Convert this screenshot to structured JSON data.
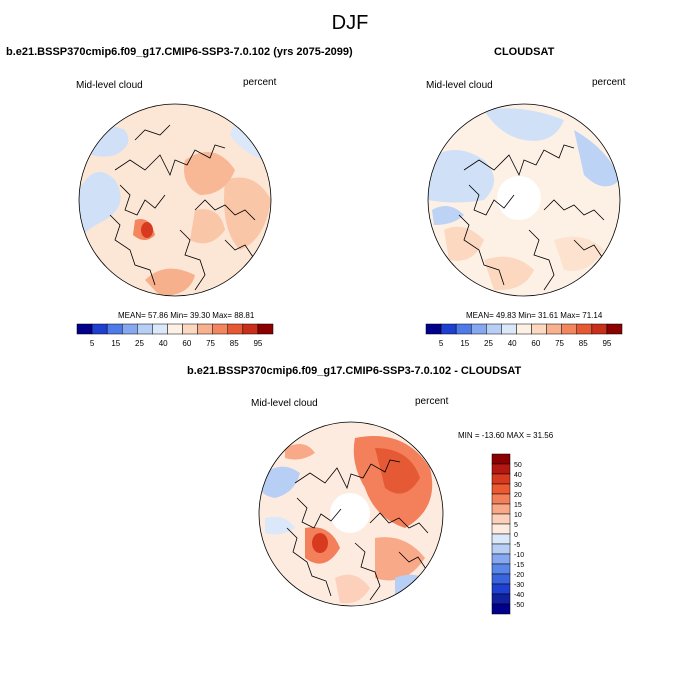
{
  "title": "DJF",
  "panels": [
    {
      "title": "b.e21.BSSP370cmip6.f09_g17.CMIP6-SSP3-7.0.102 (yrs 2075-2099)",
      "left_label": "Mid-level cloud",
      "right_label": "percent",
      "stats": "MEAN=  57.86  Min=  39.30  Max=  88.81"
    },
    {
      "title": "CLOUDSAT",
      "left_label": "Mid-level cloud",
      "right_label": "percent",
      "stats": "MEAN=  49.83  Min=  31.61  Max=  71.14"
    },
    {
      "title": "b.e21.BSSP370cmip6.f09_g17.CMIP6-SSP3-7.0.102 - CLOUDSAT",
      "left_label": "Mid-level cloud",
      "right_label": "percent",
      "stats": "MIN = -13.60 MAX =  31.56"
    }
  ],
  "abs_colorbar": {
    "ticks": [
      "5",
      "15",
      "25",
      "40",
      "60",
      "75",
      "85",
      "95"
    ],
    "colors": [
      "#00008b",
      "#1f3fd0",
      "#4f7be8",
      "#86a8f0",
      "#b8cff5",
      "#dbe8fa",
      "#fdf1e6",
      "#fcd8c0",
      "#f8b18f",
      "#f3855f",
      "#e55a35",
      "#c8301c",
      "#8b0000"
    ]
  },
  "diff_colorbar": {
    "ticks": [
      "50",
      "40",
      "30",
      "20",
      "15",
      "10",
      "5",
      "0",
      "-5",
      "-10",
      "-15",
      "-20",
      "-30",
      "-40",
      "-50"
    ],
    "colors": [
      "#8b0000",
      "#b51810",
      "#d83a20",
      "#ec5a32",
      "#f3805a",
      "#f8a988",
      "#fcd0ba",
      "#fdebe0",
      "#dbe8fa",
      "#b8cff5",
      "#86a8f0",
      "#5a86ea",
      "#3a63de",
      "#1f3fd0",
      "#10209e",
      "#00008b"
    ]
  }
}
